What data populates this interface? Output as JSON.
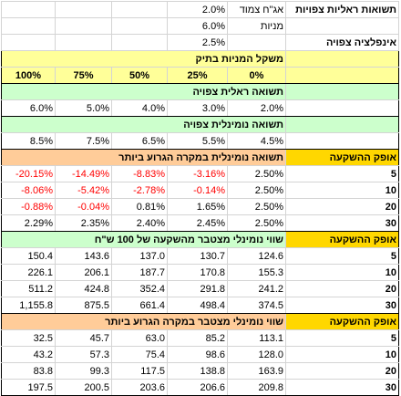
{
  "params": {
    "real_returns_label": "תשואות ראליות צפויות",
    "bond_label": "אג\"ח צמוד",
    "bond_value": "2.0%",
    "stocks_label": "מניות",
    "stocks_value": "6.0%",
    "inflation_label": "אינפלציה צפויה",
    "inflation_value": "2.5%"
  },
  "weights": {
    "title": "משקל המניות בתיק",
    "columns": [
      "100%",
      "75%",
      "50%",
      "25%",
      "0%"
    ]
  },
  "real_return": {
    "title": "תשואה ראלית צפויה",
    "values": [
      "6.0%",
      "5.0%",
      "4.0%",
      "3.0%",
      "2.0%"
    ]
  },
  "nominal_return": {
    "title": "תשואה נומינלית צפויה",
    "values": [
      "8.5%",
      "7.5%",
      "6.5%",
      "5.5%",
      "4.5%"
    ]
  },
  "worst_return": {
    "horizon_label": "אופק ההשקעה",
    "title": "תשואה נומינלית במקרה הגרוע ביותר",
    "rows": [
      {
        "horizon": "5",
        "values": [
          "-20.15%",
          "-14.49%",
          "-8.83%",
          "-3.16%",
          "2.50%"
        ]
      },
      {
        "horizon": "10",
        "values": [
          "-8.06%",
          "-5.42%",
          "-2.78%",
          "-0.14%",
          "2.50%"
        ]
      },
      {
        "horizon": "20",
        "values": [
          "-0.88%",
          "-0.04%",
          "0.81%",
          "1.65%",
          "2.50%"
        ]
      },
      {
        "horizon": "30",
        "values": [
          "2.29%",
          "2.35%",
          "2.40%",
          "2.45%",
          "2.50%"
        ]
      }
    ]
  },
  "accumulated_value": {
    "horizon_label": "אופק ההשקעה",
    "title": "שווי נומינלי מצטבר מהשקעה של 100 ש\"ח",
    "rows": [
      {
        "horizon": "5",
        "values": [
          "150.4",
          "143.6",
          "137.0",
          "130.7",
          "124.6"
        ]
      },
      {
        "horizon": "10",
        "values": [
          "226.1",
          "206.1",
          "187.7",
          "170.8",
          "155.3"
        ]
      },
      {
        "horizon": "20",
        "values": [
          "511.2",
          "424.8",
          "352.4",
          "291.8",
          "241.2"
        ]
      },
      {
        "horizon": "30",
        "values": [
          "1,155.8",
          "875.5",
          "661.4",
          "498.4",
          "374.5"
        ]
      }
    ]
  },
  "worst_value": {
    "horizon_label": "אופק ההשקעה",
    "title": "שווי נומינלי מצטבר במקרה הגרוע ביותר",
    "rows": [
      {
        "horizon": "5",
        "values": [
          "32.5",
          "45.7",
          "63.0",
          "85.2",
          "113.1"
        ]
      },
      {
        "horizon": "10",
        "values": [
          "43.2",
          "57.3",
          "75.4",
          "98.6",
          "128.0"
        ]
      },
      {
        "horizon": "20",
        "values": [
          "83.8",
          "99.3",
          "117.5",
          "138.8",
          "163.9"
        ]
      },
      {
        "horizon": "30",
        "values": [
          "197.5",
          "200.5",
          "203.6",
          "206.6",
          "209.8"
        ]
      }
    ]
  },
  "colors": {
    "header_yellow": "#ffff99",
    "header_green": "#ccffcc",
    "header_orange": "#ffcc99",
    "horizon_gold": "#ffd700",
    "negative": "#ff0000"
  }
}
